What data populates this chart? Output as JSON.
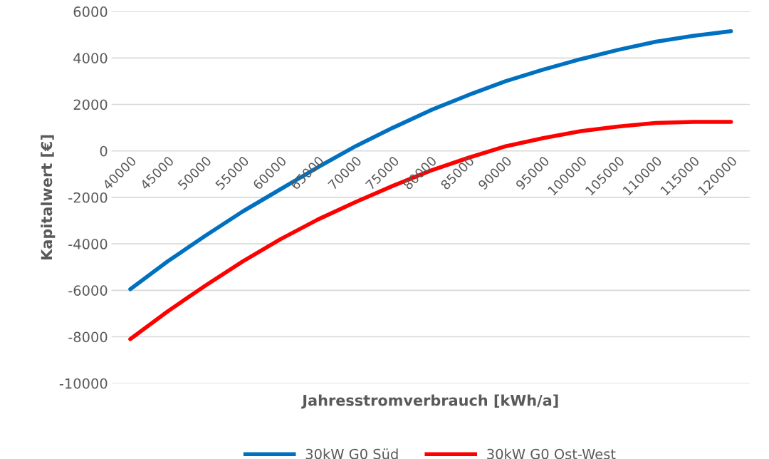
{
  "chart_data": {
    "type": "line",
    "xlabel": "Jahresstromverbrauch [kWh/a]",
    "ylabel": "Kapitalwert [€]",
    "categories": [
      "40000",
      "45000",
      "50000",
      "55000",
      "60000",
      "65000",
      "70000",
      "75000",
      "80000",
      "85000",
      "90000",
      "95000",
      "100000",
      "105000",
      "110000",
      "115000",
      "120000"
    ],
    "series": [
      {
        "name": "30kW G0 Süd",
        "color": "#0070c0",
        "values": [
          -5950,
          -4750,
          -3650,
          -2600,
          -1650,
          -700,
          200,
          1000,
          1750,
          2400,
          3000,
          3500,
          3950,
          4350,
          4700,
          4950,
          5150
        ]
      },
      {
        "name": "30kW G0 Ost-West",
        "color": "#ff0000",
        "values": [
          -8100,
          -6900,
          -5800,
          -4750,
          -3800,
          -2950,
          -2200,
          -1500,
          -850,
          -300,
          200,
          550,
          850,
          1050,
          1200,
          1250,
          1250
        ]
      }
    ],
    "ylim": [
      -10000,
      6000
    ],
    "yticks": [
      -10000,
      -8000,
      -6000,
      -4000,
      -2000,
      0,
      2000,
      4000,
      6000
    ],
    "grid": "y",
    "legend": "bottom",
    "marker": "none",
    "line_style": "solid"
  }
}
